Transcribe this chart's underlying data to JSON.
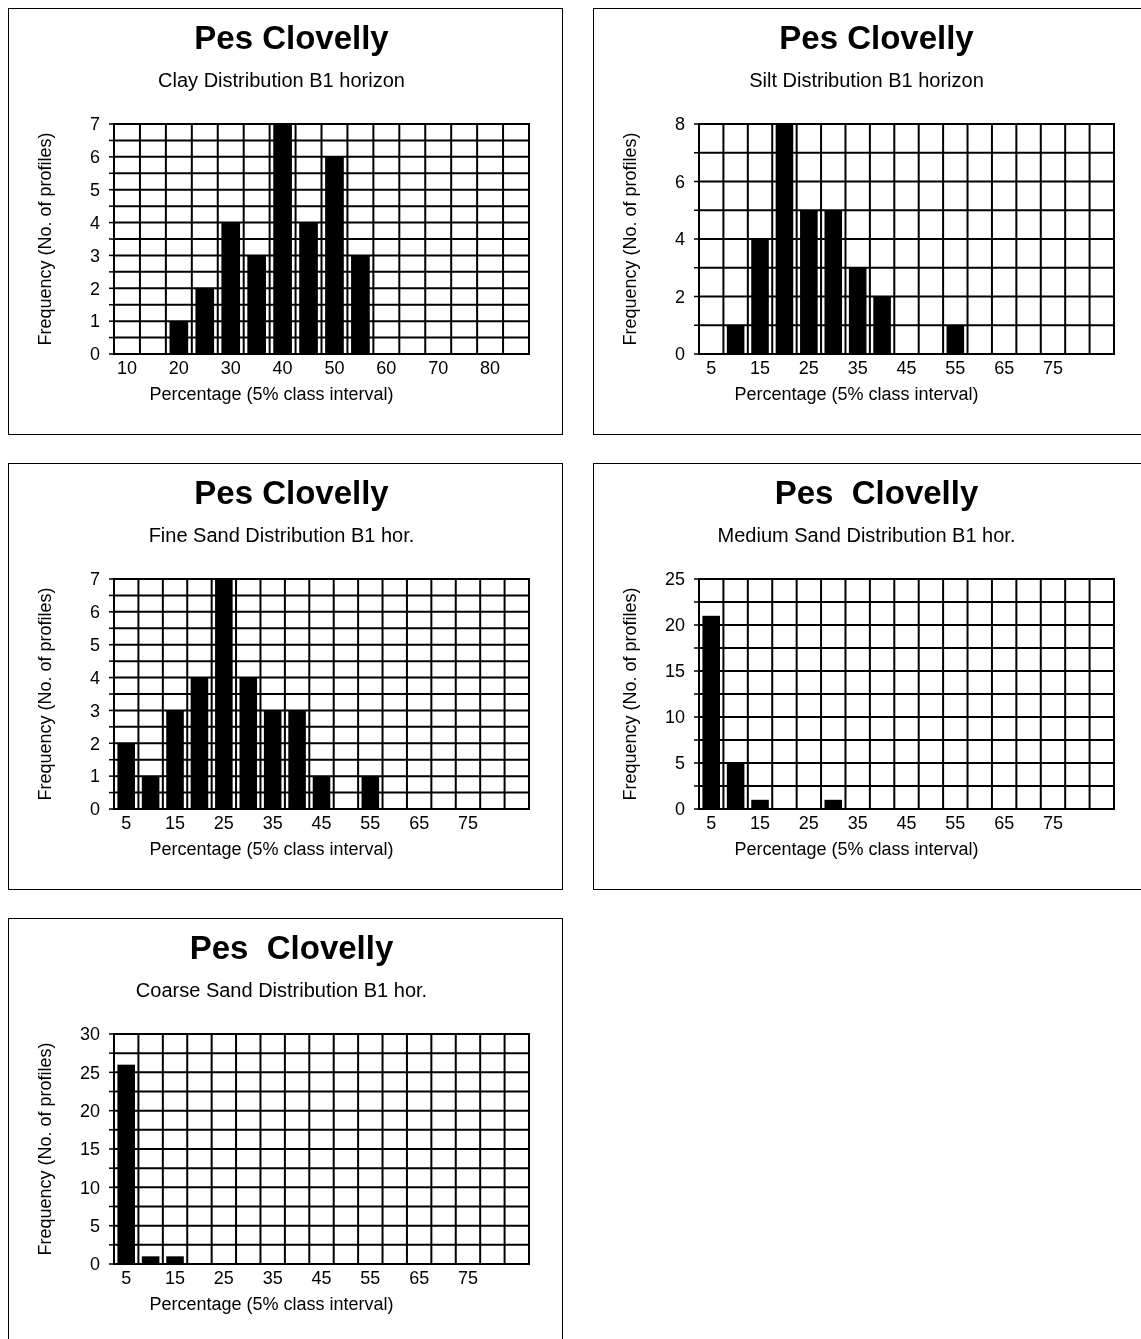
{
  "chart_data": [
    {
      "type": "bar",
      "title": "Pes Clovelly",
      "subtitle": "Clay Distribution B1 horizon",
      "xlabel": "Percentage (5% class interval)",
      "ylabel": "Frequency (No. of profiles)",
      "categories": [
        "10",
        null,
        "20",
        null,
        "30",
        null,
        "40",
        null,
        "50",
        null,
        "60",
        null,
        "70",
        null,
        "80",
        null
      ],
      "values": [
        0,
        0,
        1,
        2,
        4,
        3,
        7,
        4,
        6,
        3,
        0,
        0,
        0,
        0,
        0,
        0
      ],
      "color": "#000000",
      "ylim": [
        0,
        7
      ],
      "yticks": [
        0,
        {
          "value": 0.5,
          "label": null
        },
        1,
        {
          "value": 1.5,
          "label": null
        },
        2,
        {
          "value": 2.5,
          "label": null
        },
        3,
        {
          "value": 3.5,
          "label": null
        },
        4,
        {
          "value": 4.5,
          "label": null
        },
        5,
        {
          "value": 5.5,
          "label": null
        },
        6,
        {
          "value": 6.5,
          "label": null
        },
        7
      ],
      "grid": true
    },
    {
      "type": "bar",
      "title": "Pes Clovelly",
      "subtitle": "Silt Distribution B1 horizon",
      "xlabel": "Percentage (5% class interval)",
      "ylabel": "Frequency (No. of profiles)",
      "categories": [
        "5",
        null,
        "15",
        null,
        "25",
        null,
        "35",
        null,
        "45",
        null,
        "55",
        null,
        "65",
        null,
        "75",
        null,
        null
      ],
      "values": [
        0,
        1,
        4,
        8,
        5,
        5,
        3,
        2,
        0,
        0,
        1,
        0,
        0,
        0,
        0,
        0,
        0
      ],
      "color": "#000000",
      "ylim": [
        0,
        8
      ],
      "yticks": [
        0,
        {
          "value": 1,
          "label": null
        },
        2,
        {
          "value": 3,
          "label": null
        },
        4,
        {
          "value": 5,
          "label": null
        },
        6,
        {
          "value": 7,
          "label": null
        },
        8
      ],
      "grid": true
    },
    {
      "type": "bar",
      "title": "Pes Clovelly",
      "subtitle": "Fine Sand Distribution B1 hor.",
      "xlabel": "Percentage (5% class interval)",
      "ylabel": "Frequency (No. of profiles)",
      "categories": [
        "5",
        null,
        "15",
        null,
        "25",
        null,
        "35",
        null,
        "45",
        null,
        "55",
        null,
        "65",
        null,
        "75",
        null,
        null
      ],
      "values": [
        2,
        1,
        3,
        4,
        7,
        4,
        3,
        3,
        1,
        0,
        1,
        0,
        0,
        0,
        0,
        0,
        0
      ],
      "color": "#000000",
      "ylim": [
        0,
        7
      ],
      "yticks": [
        0,
        {
          "value": 0.5,
          "label": null
        },
        1,
        {
          "value": 1.5,
          "label": null
        },
        2,
        {
          "value": 2.5,
          "label": null
        },
        3,
        {
          "value": 3.5,
          "label": null
        },
        4,
        {
          "value": 4.5,
          "label": null
        },
        5,
        {
          "value": 5.5,
          "label": null
        },
        6,
        {
          "value": 6.5,
          "label": null
        },
        7
      ],
      "grid": true
    },
    {
      "type": "bar",
      "title": "Pes  Clovelly",
      "subtitle": "Medium Sand Distribution B1 hor.",
      "xlabel": "Percentage (5% class interval)",
      "ylabel": "Frequency (No. of profiles)",
      "categories": [
        "5",
        null,
        "15",
        null,
        "25",
        null,
        "35",
        null,
        "45",
        null,
        "55",
        null,
        "65",
        null,
        "75",
        null,
        null
      ],
      "values": [
        21,
        5,
        1,
        0,
        0,
        1,
        0,
        0,
        0,
        0,
        0,
        0,
        0,
        0,
        0,
        0,
        0
      ],
      "color": "#000000",
      "ylim": [
        0,
        25
      ],
      "yticks": [
        0,
        {
          "value": 2.5,
          "label": null
        },
        5,
        {
          "value": 7.5,
          "label": null
        },
        10,
        {
          "value": 12.5,
          "label": null
        },
        15,
        {
          "value": 17.5,
          "label": null
        },
        20,
        {
          "value": 22.5,
          "label": null
        },
        25
      ],
      "grid": true
    },
    {
      "type": "bar",
      "title": "Pes  Clovelly",
      "subtitle": "Coarse Sand Distribution B1 hor.",
      "xlabel": "Percentage (5% class interval)",
      "ylabel": "Frequency (No. of profiles)",
      "categories": [
        "5",
        null,
        "15",
        null,
        "25",
        null,
        "35",
        null,
        "45",
        null,
        "55",
        null,
        "65",
        null,
        "75",
        null,
        null
      ],
      "values": [
        26,
        1,
        1,
        0,
        0,
        0,
        0,
        0,
        0,
        0,
        0,
        0,
        0,
        0,
        0,
        0,
        0
      ],
      "color": "#000000",
      "ylim": [
        0,
        30
      ],
      "yticks": [
        0,
        {
          "value": 2.5,
          "label": null
        },
        5,
        {
          "value": 7.5,
          "label": null
        },
        10,
        {
          "value": 12.5,
          "label": null
        },
        15,
        {
          "value": 17.5,
          "label": null
        },
        20,
        {
          "value": 22.5,
          "label": null
        },
        25,
        {
          "value": 27.5,
          "label": null
        },
        30
      ],
      "grid": true
    }
  ]
}
